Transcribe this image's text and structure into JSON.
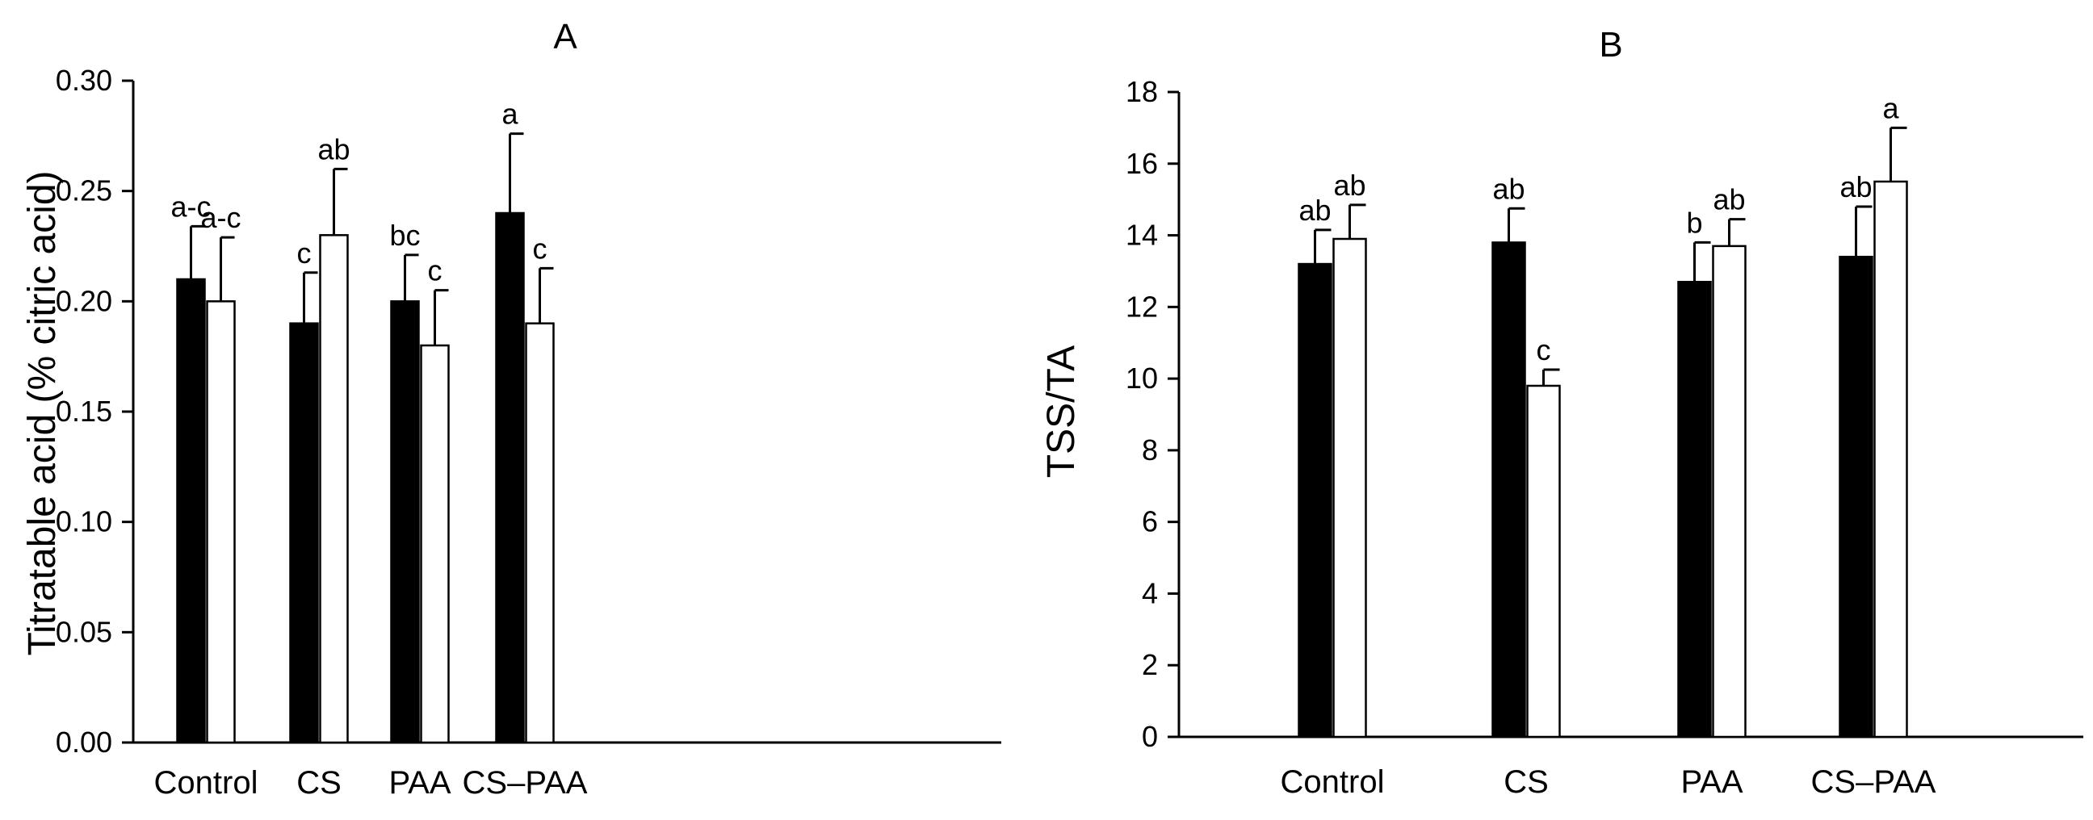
{
  "chart_data": [
    {
      "type": "bar",
      "panel": "A",
      "title": "A",
      "xlabel": "",
      "ylabel": "Titratable acid (% citric acid)",
      "ylim": [
        0,
        0.3
      ],
      "yticks": [
        0.0,
        0.05,
        0.1,
        0.15,
        0.2,
        0.25,
        0.3
      ],
      "ytick_labels": [
        "0.00",
        "0.05",
        "0.10",
        "0.15",
        "0.20",
        "0.25",
        "0.30"
      ],
      "grid": false,
      "legend": "none",
      "categories": [
        "Control",
        "CS",
        "PAA",
        "CS–PAA"
      ],
      "series": [
        {
          "name": "filled",
          "color": "#000000",
          "values": [
            0.21,
            0.19,
            0.2,
            0.24
          ],
          "errors": [
            0.024,
            0.023,
            0.021,
            0.036
          ],
          "letters": [
            "a-c",
            "c",
            "bc",
            "a"
          ]
        },
        {
          "name": "open",
          "color": "#ffffff",
          "values": [
            0.2,
            0.23,
            0.18,
            0.19
          ],
          "errors": [
            0.029,
            0.03,
            0.025,
            0.025
          ],
          "letters": [
            "a-c",
            "ab",
            "c",
            "c"
          ]
        }
      ]
    },
    {
      "type": "bar",
      "panel": "B",
      "title": "B",
      "xlabel": "",
      "ylabel": "TSS/TA",
      "ylim": [
        0,
        18
      ],
      "yticks": [
        0,
        2,
        4,
        6,
        8,
        10,
        12,
        14,
        16,
        18
      ],
      "ytick_labels": [
        "0",
        "2",
        "4",
        "6",
        "8",
        "10",
        "12",
        "14",
        "16",
        "18"
      ],
      "grid": false,
      "legend": "none",
      "categories": [
        "Control",
        "CS",
        "PAA",
        "CS–PAA"
      ],
      "series": [
        {
          "name": "filled",
          "color": "#000000",
          "values": [
            13.2,
            13.8,
            12.7,
            13.4
          ],
          "errors": [
            0.95,
            0.95,
            1.1,
            1.4
          ],
          "letters": [
            "ab",
            "ab",
            "b",
            "ab"
          ]
        },
        {
          "name": "open",
          "color": "#ffffff",
          "values": [
            13.9,
            9.8,
            13.7,
            15.5
          ],
          "errors": [
            0.95,
            0.45,
            0.75,
            1.5
          ],
          "letters": [
            "ab",
            "c",
            "ab",
            "a"
          ]
        }
      ]
    }
  ]
}
